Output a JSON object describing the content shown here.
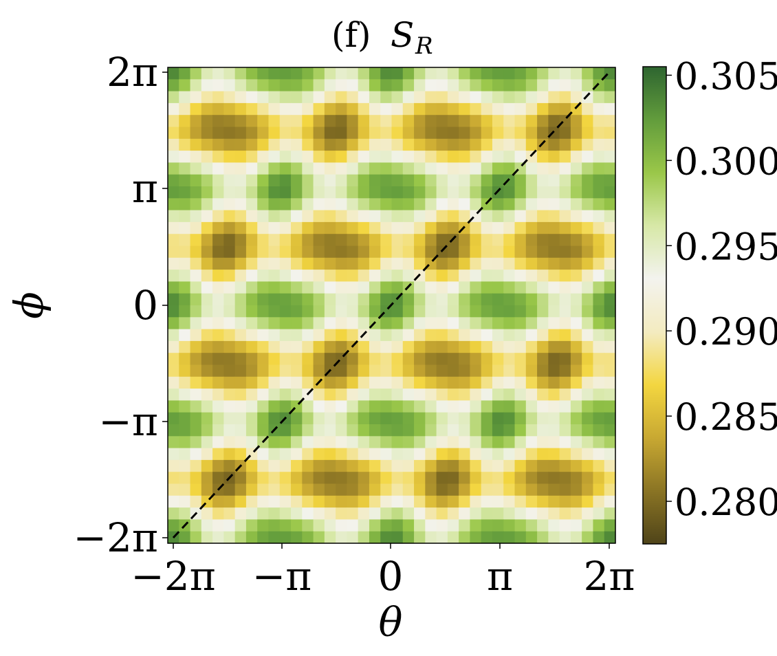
{
  "chart_data": {
    "type": "heatmap",
    "title": {
      "prefix": "(f)",
      "symbol": "S",
      "subscript": "R"
    },
    "xlabel": "θ",
    "ylabel": "ϕ",
    "x_range": [
      "-2π",
      "2π"
    ],
    "y_range": [
      "-2π",
      "2π"
    ],
    "grid_size": 40,
    "x_ticks": [
      "−2π",
      "−π",
      "0",
      "π",
      "2π"
    ],
    "y_ticks": [
      "−2π",
      "−π",
      "0",
      "π",
      "2π"
    ],
    "field": {
      "description_formula": "mean + amp * cos(2θ) * cos(ϕ-θ)^2-like periodic pattern",
      "min": 0.2775,
      "max": 0.3055
    },
    "colorbar": {
      "min": 0.2775,
      "max": 0.3055,
      "ticks": [
        "0.280",
        "0.285",
        "0.290",
        "0.295",
        "0.300",
        "0.305"
      ],
      "tick_values": [
        0.28,
        0.285,
        0.29,
        0.295,
        0.3,
        0.305
      ],
      "colors": [
        "#4f4419",
        "#8a7424",
        "#c8a832",
        "#f3d640",
        "#f3ebc0",
        "#f3f3ee",
        "#d7e8a7",
        "#9ac749",
        "#629c3c",
        "#2e6530"
      ]
    },
    "diagonal": {
      "style": "dashed",
      "color": "#000000",
      "from": [
        "-2π",
        "-2π"
      ],
      "to": [
        "2π",
        "2π"
      ]
    },
    "grid": false
  }
}
